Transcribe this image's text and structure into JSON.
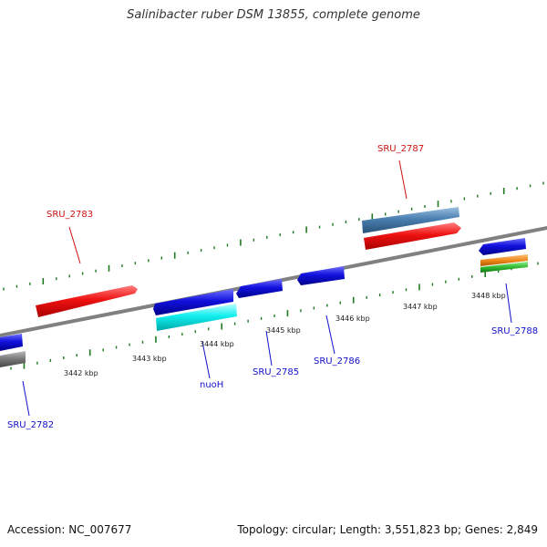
{
  "title": "Salinibacter ruber DSM 13855, complete genome",
  "footer": {
    "accession": "Accession: NC_007677",
    "summary": "Topology: circular; Length: 3,551,823 bp; Genes: 2,849"
  },
  "kbp_labels": [
    "3442 kbp",
    "3443 kbp",
    "3444 kbp",
    "3445 kbp",
    "3446 kbp",
    "3447 kbp",
    "3448 kbp"
  ],
  "gene_labels": {
    "sru2783": "SRU_2783",
    "sru2787": "SRU_2787",
    "sru2782": "SRU_2782",
    "nuoh": "nuoH",
    "sru2785": "SRU_2785",
    "sru2786": "SRU_2786",
    "sru2788": "SRU_2788"
  },
  "colors": {
    "forward_gene": "#ee1111",
    "reverse_gene": "#1111dd",
    "cyan_gene": "#11eeee",
    "steel_gene": "#4a7fb0",
    "grey_gene": "#777777",
    "orange_gene": "#f08a1a",
    "green_gene": "#33bb33",
    "backbone": "#808080",
    "tick": "#1f7a1f",
    "label_forward": "#cc1111",
    "label_reverse": "#1111cc"
  }
}
